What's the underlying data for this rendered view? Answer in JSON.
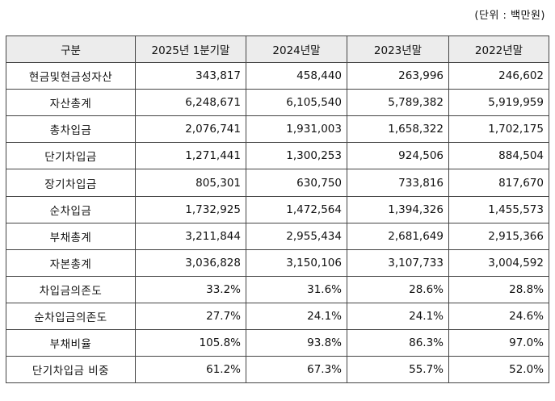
{
  "unit_label": "(단위 : 백만원)",
  "table": {
    "headers": [
      "구분",
      "2025년 1분기말",
      "2024년말",
      "2023년말",
      "2022년말"
    ],
    "rows": [
      {
        "label": "현금및현금성자산",
        "values": [
          "343,817",
          "458,440",
          "263,996",
          "246,602"
        ]
      },
      {
        "label": "자산총계",
        "values": [
          "6,248,671",
          "6,105,540",
          "5,789,382",
          "5,919,959"
        ]
      },
      {
        "label": "총차입금",
        "values": [
          "2,076,741",
          "1,931,003",
          "1,658,322",
          "1,702,175"
        ]
      },
      {
        "label": "단기차입금",
        "values": [
          "1,271,441",
          "1,300,253",
          "924,506",
          "884,504"
        ]
      },
      {
        "label": "장기차입금",
        "values": [
          "805,301",
          "630,750",
          "733,816",
          "817,670"
        ]
      },
      {
        "label": "순차입금",
        "values": [
          "1,732,925",
          "1,472,564",
          "1,394,326",
          "1,455,573"
        ]
      },
      {
        "label": "부채총계",
        "values": [
          "3,211,844",
          "2,955,434",
          "2,681,649",
          "2,915,366"
        ]
      },
      {
        "label": "자본총계",
        "values": [
          "3,036,828",
          "3,150,106",
          "3,107,733",
          "3,004,592"
        ]
      },
      {
        "label": "차입금의존도",
        "values": [
          "33.2%",
          "31.6%",
          "28.6%",
          "28.8%"
        ]
      },
      {
        "label": "순차입금의존도",
        "values": [
          "27.7%",
          "24.1%",
          "24.1%",
          "24.6%"
        ]
      },
      {
        "label": "부채비율",
        "values": [
          "105.8%",
          "93.8%",
          "86.3%",
          "97.0%"
        ]
      },
      {
        "label": "단기차입금 비중",
        "values": [
          "61.2%",
          "67.3%",
          "55.7%",
          "52.0%"
        ]
      }
    ]
  }
}
